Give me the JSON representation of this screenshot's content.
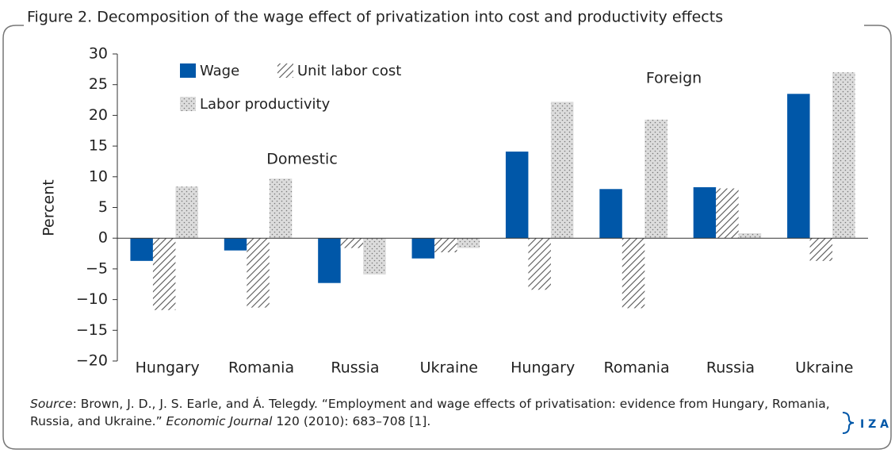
{
  "chart_data": {
    "type": "bar",
    "title": "Figure 2. Decomposition of the wage effect of privatization into cost and productivity effects",
    "ylabel": "Percent",
    "annotations": [
      "Domestic",
      "Foreign"
    ],
    "categories": [
      "Hungary",
      "Romania",
      "Russia",
      "Ukraine",
      "Hungary",
      "Romania",
      "Russia",
      "Ukraine"
    ],
    "series": [
      {
        "name": "Wage",
        "color": "#0057a8",
        "pattern": "solid",
        "values": [
          -3.7,
          -2.0,
          -7.3,
          -3.3,
          14.1,
          8.0,
          8.3,
          23.5
        ]
      },
      {
        "name": "Unit labor cost",
        "color": "#555555",
        "pattern": "hatch",
        "values": [
          -11.7,
          -11.3,
          -1.6,
          -2.3,
          -8.4,
          -11.4,
          8.1,
          -3.7
        ]
      },
      {
        "name": "Labor productivity",
        "color": "#d4d4d4",
        "pattern": "dots",
        "values": [
          8.4,
          9.7,
          -5.9,
          -1.6,
          22.2,
          19.3,
          0.8,
          27.0
        ]
      }
    ],
    "ylim": [
      -20,
      30
    ],
    "yticks": [
      {
        "value": -20,
        "label": "−20"
      },
      {
        "value": -15,
        "label": "−15"
      },
      {
        "value": -10,
        "label": "−10"
      },
      {
        "value": -5,
        "label": "−5"
      },
      0,
      5,
      10,
      15,
      20,
      25,
      30
    ],
    "grid": false,
    "source": {
      "label": "Source",
      "text": ": Brown, J. D., J. S. Earle, and Á. Telegdy. “Employment and wage effects of privatisation: evidence from Hungary, Romania, Russia, and Ukraine.” ",
      "journal": "Economic Journal",
      "rest": " 120 (2010): 683–708 [1]."
    },
    "logo": "I Z A"
  }
}
